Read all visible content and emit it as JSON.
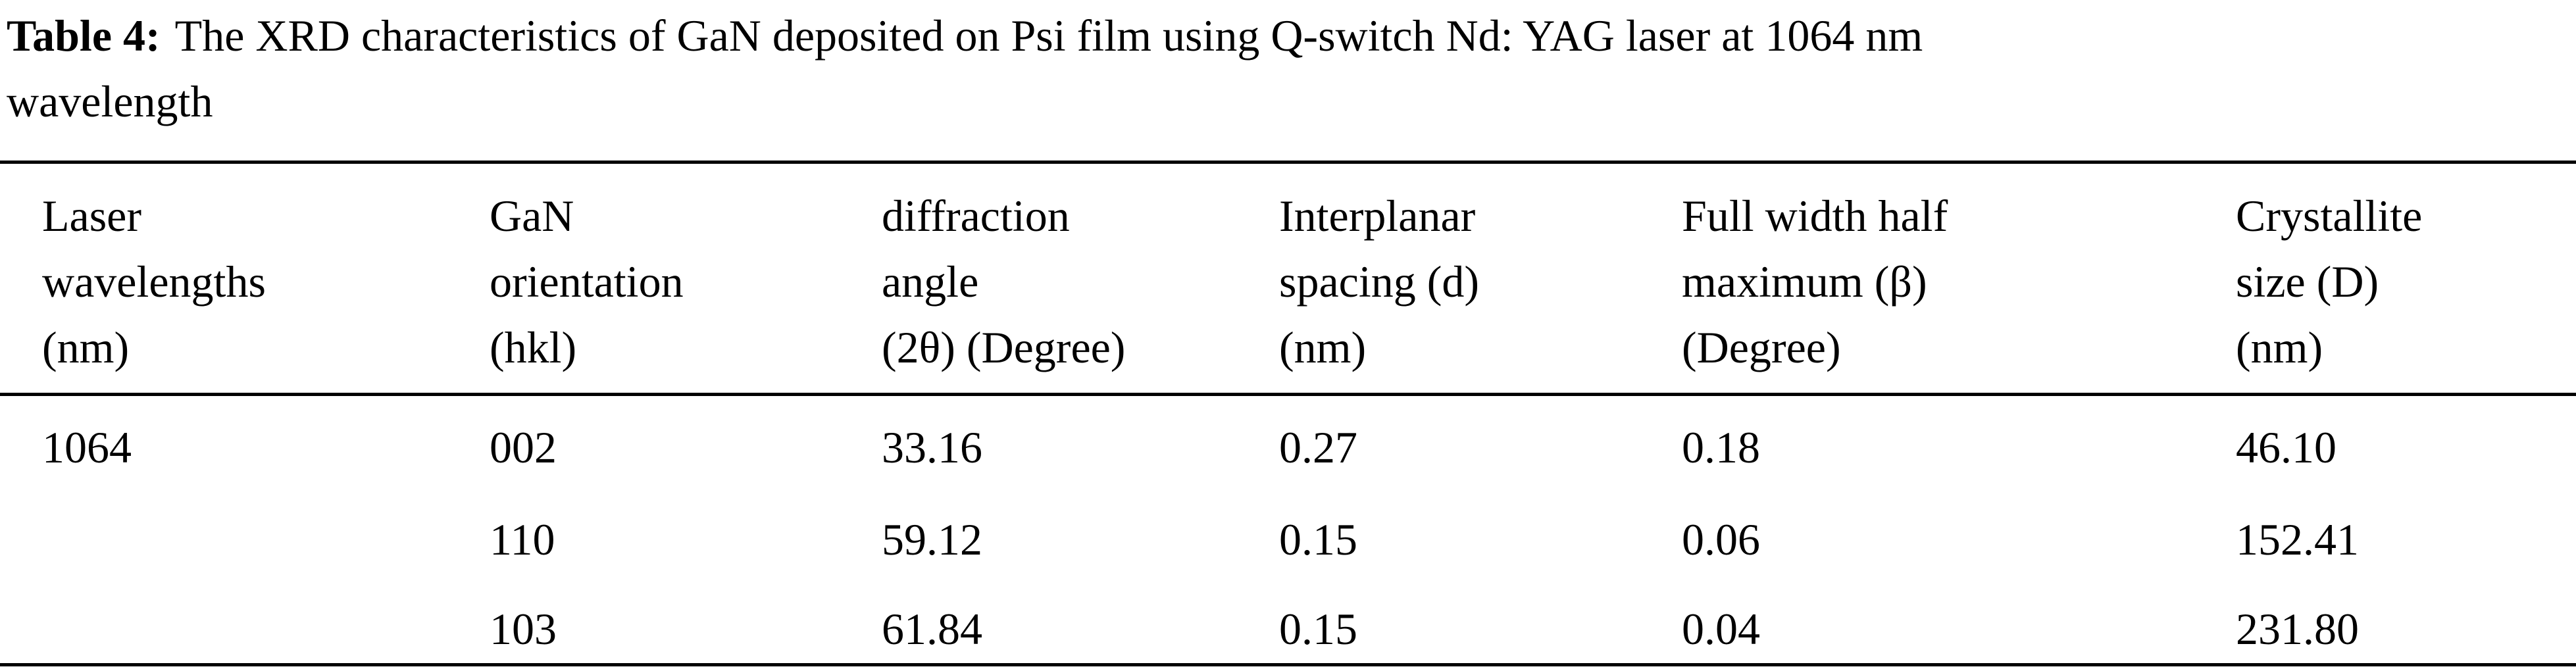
{
  "caption": {
    "label": "Table 4:",
    "text_line1": "The XRD characteristics of GaN deposited on Psi film using Q-switch Nd: YAG laser at 1064 nm",
    "text_line2": "wavelength"
  },
  "table": {
    "headers": [
      {
        "lines": [
          "Laser",
          "wavelengths",
          "(nm)"
        ]
      },
      {
        "lines": [
          "GaN",
          "orientation",
          "(hkl)"
        ]
      },
      {
        "lines": [
          "diffraction",
          "angle",
          "(2θ)  (Degree)"
        ]
      },
      {
        "lines": [
          "Interplanar",
          "spacing (d)",
          "(nm)"
        ]
      },
      {
        "lines": [
          "Full width half",
          "maximum (β)",
          "(Degree)"
        ]
      },
      {
        "lines": [
          "Crystallite",
          "size (D)",
          "(nm)"
        ]
      }
    ],
    "rows": [
      [
        "1064",
        "002",
        "33.16",
        "0.27",
        "0.18",
        "46.10"
      ],
      [
        "",
        "110",
        "59.12",
        "0.15",
        "0.06",
        "152.41"
      ],
      [
        "",
        "103",
        "61.84",
        "0.15",
        "0.04",
        "231.80"
      ]
    ]
  }
}
